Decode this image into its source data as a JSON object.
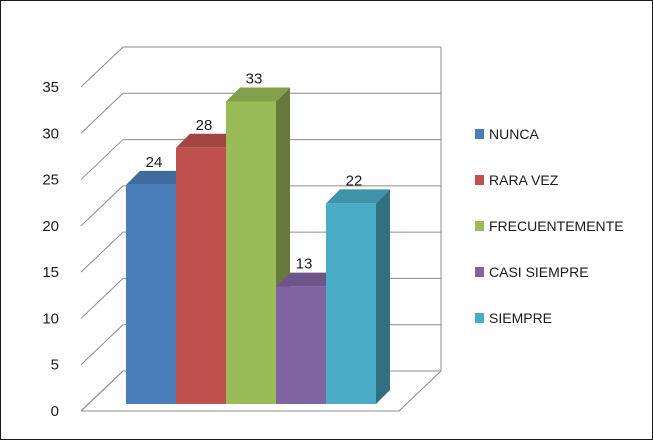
{
  "chart_data": {
    "type": "bar",
    "style": "3d-clustered-column",
    "categories": [
      "NUNCA",
      "RARA VEZ",
      "FRECUENTEMENTE",
      "CASI SIEMPRE",
      "SIEMPRE"
    ],
    "values": [
      24,
      28,
      33,
      13,
      22
    ],
    "data_labels": [
      "24",
      "28",
      "33",
      "13",
      "22"
    ],
    "colors": [
      "#4a7ebb",
      "#c0504d",
      "#9bbb59",
      "#8064a2",
      "#4bacc6"
    ],
    "y_ticks": [
      0,
      5,
      10,
      15,
      20,
      25,
      30,
      35
    ],
    "ylim": [
      0,
      35
    ],
    "grid": true,
    "legend": {
      "position": "right",
      "entries": [
        "NUNCA",
        "RARA VEZ",
        "FRECUENTEMENTE",
        "CASI SIEMPRE",
        "SIEMPRE"
      ]
    },
    "title": "",
    "xlabel": "",
    "ylabel": ""
  }
}
